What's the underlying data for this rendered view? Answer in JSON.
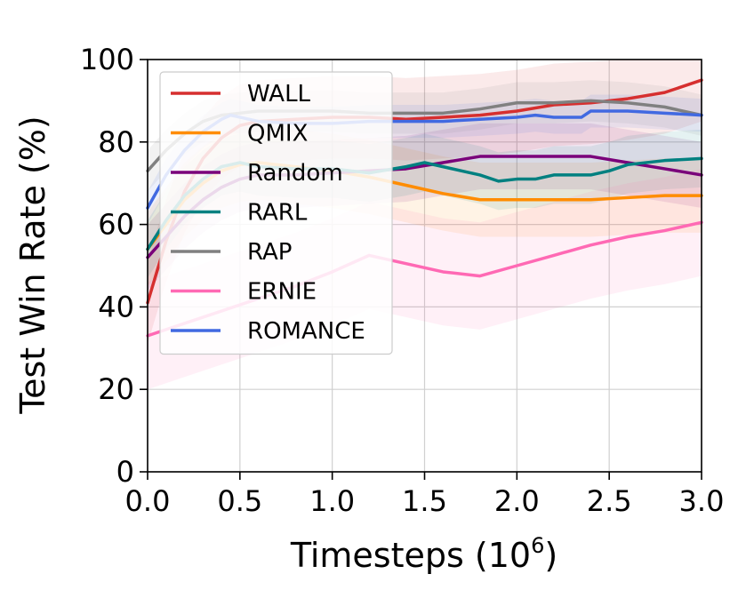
{
  "chart_data": {
    "type": "line",
    "xlabel": "Timesteps (10",
    "xlabel_sup": "6",
    "xlabel_end": ")",
    "ylabel": "Test Win Rate (%)",
    "xlim": [
      0,
      3
    ],
    "ylim": [
      0,
      100
    ],
    "xticks": [
      0,
      0.5,
      1,
      1.5,
      2,
      2.5,
      3
    ],
    "xtick_labels": [
      "0.0",
      "0.5",
      "1.0",
      "1.5",
      "2.0",
      "2.5",
      "3.0"
    ],
    "yticks": [
      0,
      20,
      40,
      60,
      80,
      100
    ],
    "ytick_labels": [
      "0",
      "20",
      "40",
      "60",
      "80",
      "100"
    ],
    "grid": true,
    "legend_position": "top-left",
    "series": [
      {
        "name": "WALL",
        "color": "#d62f2f",
        "x": [
          0,
          0.1,
          0.2,
          0.3,
          0.4,
          0.5,
          0.6,
          0.8,
          1.0,
          1.2,
          1.4,
          1.6,
          1.8,
          2.0,
          2.2,
          2.4,
          2.6,
          2.8,
          3.0
        ],
        "y": [
          41,
          56,
          68,
          76,
          81,
          84,
          85,
          85.5,
          86,
          86,
          85.5,
          86,
          86.5,
          87.5,
          89,
          89.5,
          90.5,
          92,
          95
        ],
        "band": 10
      },
      {
        "name": "QMIX",
        "color": "#ff8c00",
        "x": [
          0,
          0.1,
          0.2,
          0.3,
          0.4,
          0.5,
          0.6,
          0.8,
          1.0,
          1.2,
          1.4,
          1.6,
          1.8,
          2.0,
          2.2,
          2.4,
          2.6,
          2.8,
          3.0
        ],
        "y": [
          54,
          60,
          66,
          70,
          73,
          74.5,
          75,
          74,
          73,
          71.5,
          69.5,
          67.5,
          66,
          66,
          66,
          66,
          66.5,
          67,
          67
        ],
        "band": 9
      },
      {
        "name": "Random",
        "color": "#7a007a",
        "x": [
          0,
          0.1,
          0.2,
          0.3,
          0.4,
          0.5,
          0.6,
          0.8,
          1.0,
          1.2,
          1.4,
          1.6,
          1.8,
          2.0,
          2.2,
          2.4,
          2.6,
          2.8,
          3.0
        ],
        "y": [
          52,
          57,
          62,
          66,
          69,
          71,
          72,
          72,
          72.5,
          73,
          73.5,
          75,
          76.5,
          76.5,
          76.5,
          76.5,
          75,
          73.5,
          72
        ],
        "band": 8
      },
      {
        "name": "RARL",
        "color": "#008080",
        "x": [
          0,
          0.1,
          0.2,
          0.3,
          0.4,
          0.5,
          0.6,
          0.8,
          1.0,
          1.2,
          1.4,
          1.5,
          1.6,
          1.7,
          1.8,
          1.9,
          2.0,
          2.1,
          2.2,
          2.3,
          2.4,
          2.5,
          2.6,
          2.8,
          3.0
        ],
        "y": [
          54,
          61,
          67,
          71,
          74,
          75,
          74,
          73.5,
          73.5,
          72.5,
          74,
          75,
          74,
          73,
          72,
          70.5,
          71,
          71,
          72,
          72,
          72,
          73,
          74.5,
          75.5,
          76
        ],
        "band": 7
      },
      {
        "name": "RAP",
        "color": "#808080",
        "x": [
          0,
          0.1,
          0.2,
          0.3,
          0.4,
          0.5,
          0.6,
          0.8,
          1.0,
          1.2,
          1.4,
          1.6,
          1.8,
          2.0,
          2.2,
          2.4,
          2.6,
          2.8,
          3.0
        ],
        "y": [
          73,
          78,
          82,
          85,
          86.5,
          87,
          87.5,
          87.5,
          87.5,
          87,
          87,
          87,
          88,
          89.5,
          89.5,
          90,
          89.5,
          88.5,
          86.5
        ],
        "band": 5
      },
      {
        "name": "ERNIE",
        "color": "#ff69b4",
        "x": [
          0,
          0.2,
          0.4,
          0.6,
          0.8,
          1.0,
          1.2,
          1.4,
          1.6,
          1.8,
          2.0,
          2.2,
          2.4,
          2.6,
          2.8,
          3.0
        ],
        "y": [
          33,
          36,
          39,
          42,
          45,
          48.5,
          52.5,
          50.5,
          48.5,
          47.5,
          50,
          52.5,
          55,
          57,
          58.5,
          60.5
        ],
        "band": 13
      },
      {
        "name": "ROMANCE",
        "color": "#4169e1",
        "x": [
          0,
          0.1,
          0.2,
          0.3,
          0.4,
          0.45,
          0.5,
          0.6,
          0.8,
          1.0,
          1.2,
          1.4,
          1.6,
          1.8,
          2.0,
          2.1,
          2.2,
          2.35,
          2.4,
          2.6,
          2.8,
          3.0
        ],
        "y": [
          64,
          72,
          78,
          82.5,
          85.5,
          86.5,
          86,
          85,
          84.5,
          84.5,
          85,
          85,
          85,
          85.5,
          86,
          86.5,
          86,
          86,
          87.5,
          87.5,
          87,
          86.5
        ],
        "band": 4
      }
    ]
  }
}
